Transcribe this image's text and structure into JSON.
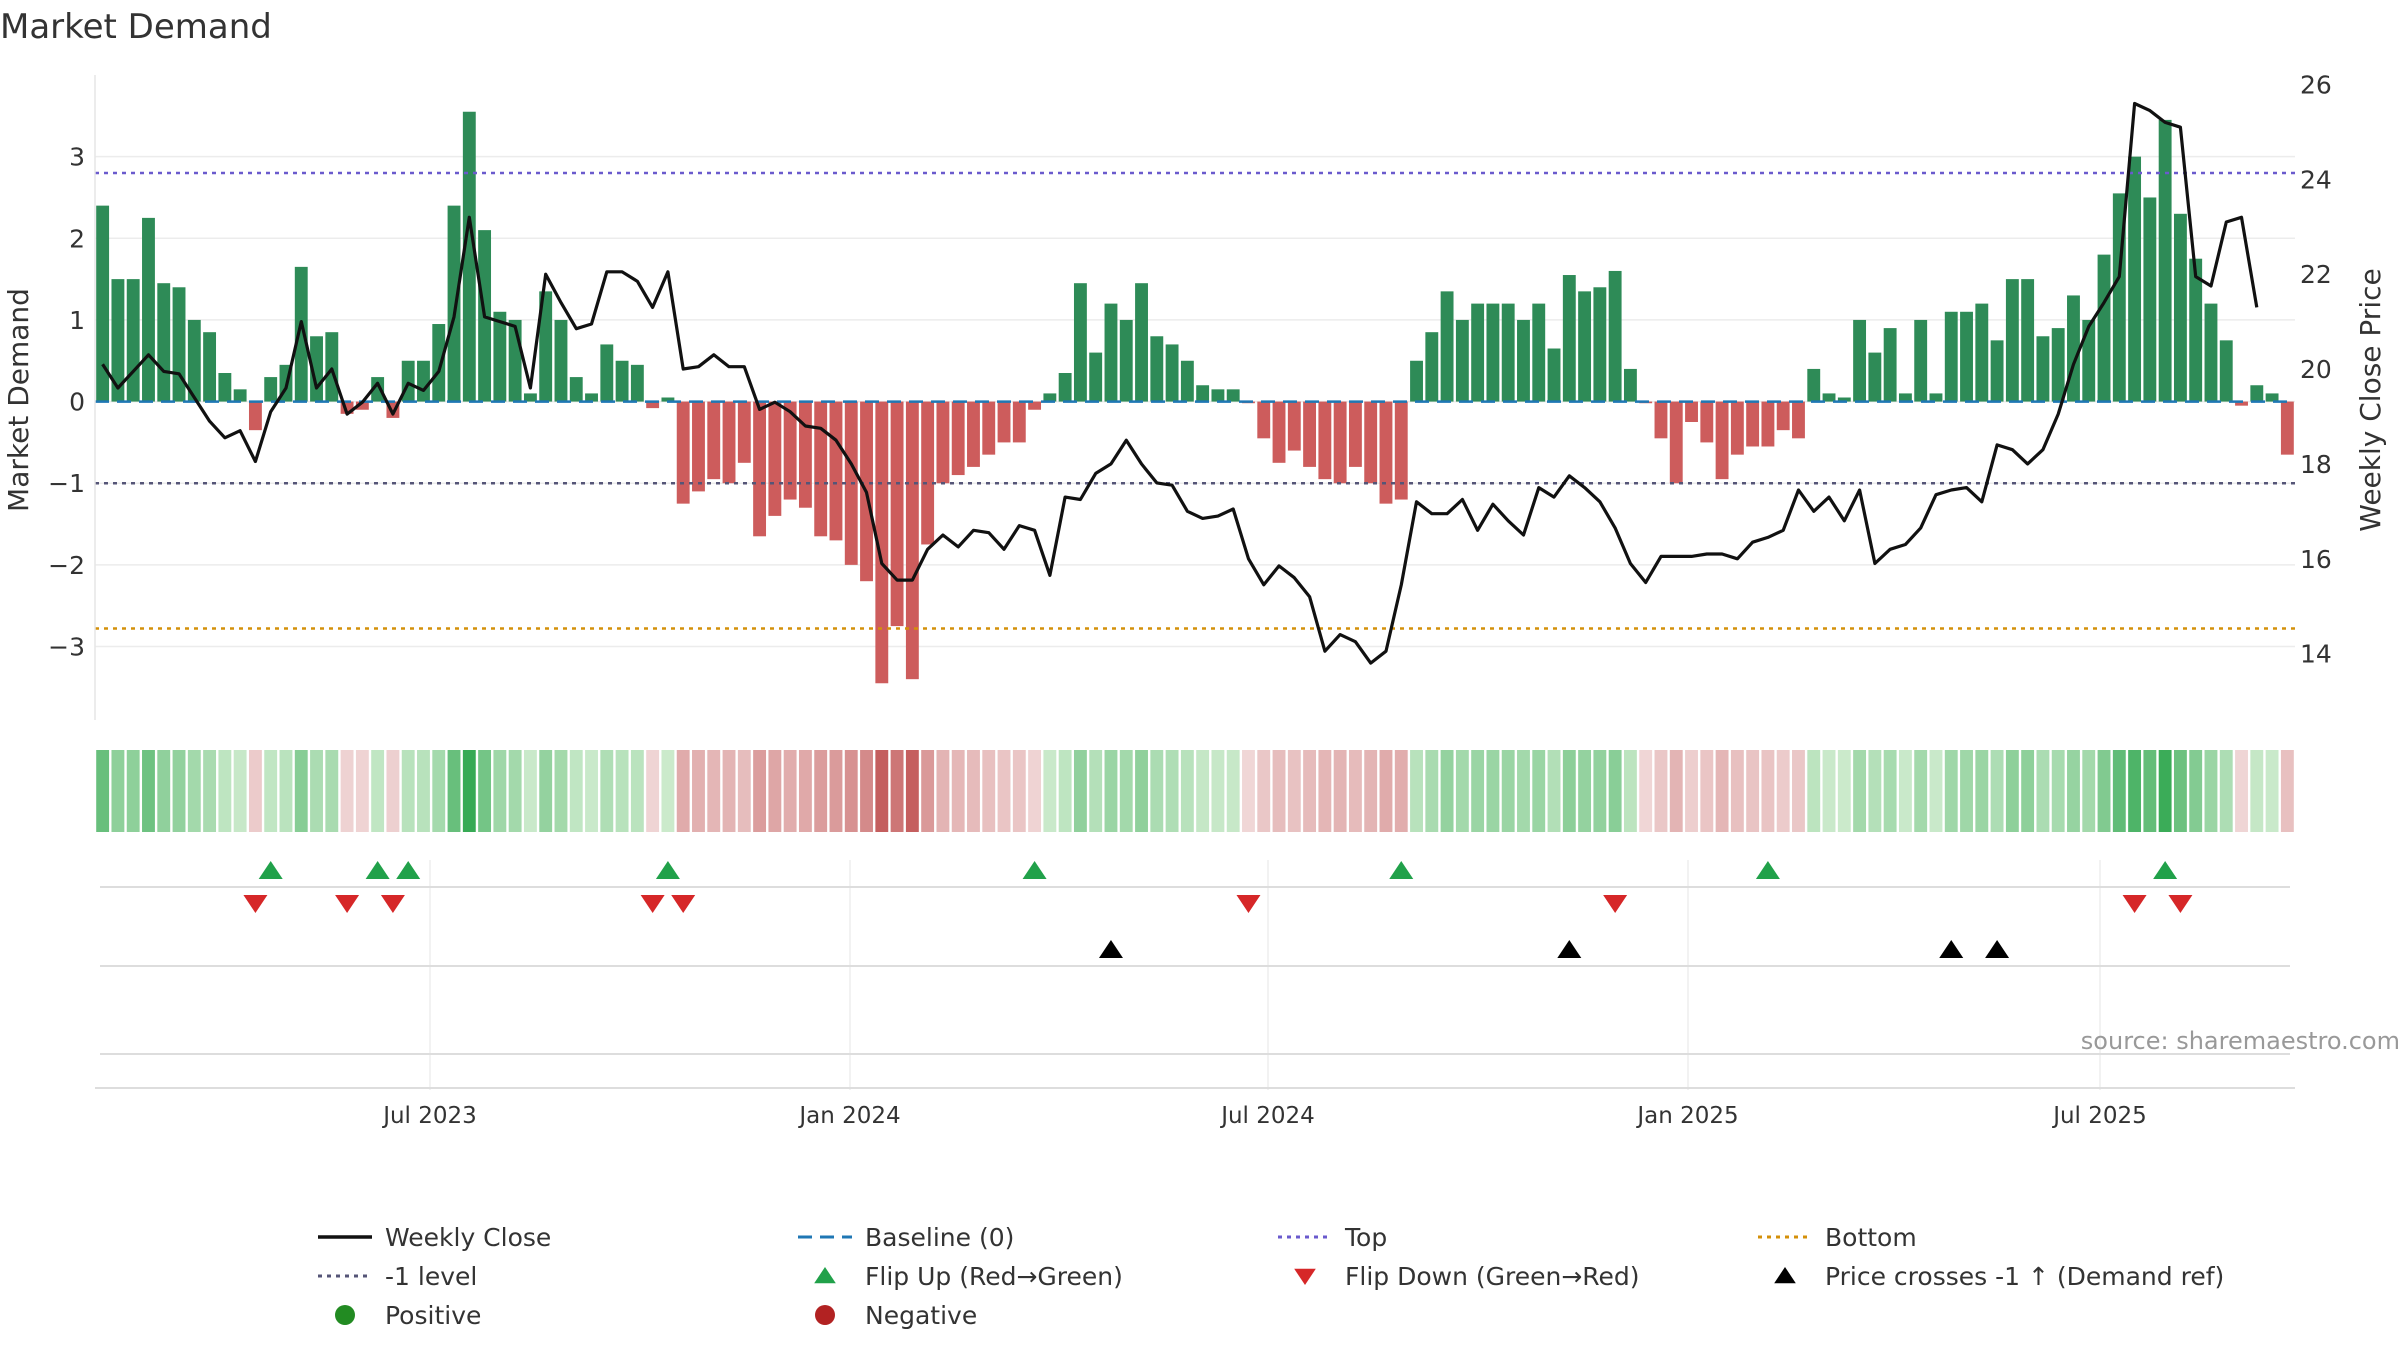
{
  "chart_data": {
    "type": "bar",
    "title": "Market Demand",
    "ylabel": "Market Demand",
    "y2label": "Weekly Close Price",
    "ylim": [
      -3.9,
      4.0
    ],
    "y2lim": [
      12.6,
      26.2
    ],
    "yticks": [
      3,
      2,
      1,
      0,
      -1,
      -2,
      -3
    ],
    "y2ticks": [
      26,
      24,
      22,
      20,
      18,
      16,
      14
    ],
    "xticks": [
      "Jul 2023",
      "Jan 2024",
      "Jul 2024",
      "Jan 2025",
      "Jul 2025"
    ],
    "source": "source: sharemaestro.com",
    "levels": {
      "top": 2.8,
      "neg_one": -1,
      "bottom": -2.78,
      "baseline": 0
    },
    "colors": {
      "positive": "#2e8b57",
      "negative": "#cd5c5c",
      "close": "#111111",
      "baseline": "#1f77b4",
      "top": "#6a5acd",
      "bottom": "#d4900a",
      "neg_one": "#555577",
      "flip_up": "#21a14a",
      "flip_down": "#d62728",
      "cross": "#000000",
      "legend_positive": "#228b22",
      "legend_negative": "#b22222"
    },
    "demand": [
      2.4,
      1.5,
      1.5,
      2.25,
      1.45,
      1.4,
      1.0,
      0.85,
      0.35,
      0.15,
      -0.35,
      0.3,
      0.45,
      1.65,
      0.8,
      0.85,
      -0.15,
      -0.1,
      0.3,
      -0.2,
      0.5,
      0.5,
      0.95,
      2.4,
      3.55,
      2.1,
      1.1,
      1.0,
      0.1,
      1.35,
      1.0,
      0.3,
      0.1,
      0.7,
      0.5,
      0.45,
      -0.08,
      0.05,
      -1.25,
      -1.1,
      -0.95,
      -1.0,
      -0.75,
      -1.65,
      -1.4,
      -1.2,
      -1.3,
      -1.65,
      -1.7,
      -2.0,
      -2.2,
      -3.45,
      -2.75,
      -3.4,
      -1.75,
      -1.0,
      -0.9,
      -0.8,
      -0.65,
      -0.5,
      -0.5,
      -0.1,
      0.1,
      0.35,
      1.45,
      0.6,
      1.2,
      1.0,
      1.45,
      0.8,
      0.7,
      0.5,
      0.2,
      0.15,
      0.15,
      -0.02,
      -0.45,
      -0.75,
      -0.6,
      -0.8,
      -0.95,
      -1.0,
      -0.8,
      -1.0,
      -1.25,
      -1.2,
      0.5,
      0.85,
      1.35,
      1.0,
      1.2,
      1.2,
      1.2,
      1.0,
      1.2,
      0.65,
      1.55,
      1.35,
      1.4,
      1.6,
      0.4,
      -0.02,
      -0.45,
      -1.0,
      -0.25,
      -0.5,
      -0.95,
      -0.65,
      -0.55,
      -0.55,
      -0.35,
      -0.45,
      0.4,
      0.1,
      0.05,
      1.0,
      0.6,
      0.9,
      0.1,
      1.0,
      0.1,
      1.1,
      1.1,
      1.2,
      0.75,
      1.5,
      1.5,
      0.8,
      0.9,
      1.3,
      1.0,
      1.8,
      2.55,
      3.0,
      2.5,
      3.45,
      2.3,
      1.75,
      1.2,
      0.75,
      -0.05,
      0.2,
      0.1,
      -0.65
    ],
    "close": [
      20.1,
      19.6,
      19.95,
      20.3,
      19.95,
      19.9,
      19.4,
      18.9,
      18.55,
      18.7,
      18.05,
      19.1,
      19.6,
      21.0,
      19.6,
      20.0,
      19.05,
      19.3,
      19.7,
      19.05,
      19.7,
      19.55,
      19.95,
      21.1,
      23.2,
      21.1,
      21.0,
      20.9,
      19.6,
      22.0,
      21.4,
      20.85,
      20.95,
      22.05,
      22.05,
      21.85,
      21.3,
      22.05,
      20.0,
      20.05,
      20.3,
      20.05,
      20.05,
      19.15,
      19.3,
      19.1,
      18.8,
      18.75,
      18.5,
      18.0,
      17.4,
      15.9,
      15.55,
      15.55,
      16.2,
      16.5,
      16.25,
      16.6,
      16.55,
      16.2,
      16.7,
      16.6,
      15.65,
      17.3,
      17.25,
      17.8,
      18.0,
      18.5,
      18.0,
      17.6,
      17.55,
      17.0,
      16.85,
      16.9,
      17.05,
      16.0,
      15.45,
      15.85,
      15.6,
      15.2,
      14.05,
      14.4,
      14.25,
      13.8,
      14.05,
      15.45,
      17.2,
      16.95,
      16.95,
      17.25,
      16.6,
      17.15,
      16.8,
      16.5,
      17.5,
      17.3,
      17.75,
      17.5,
      17.2,
      16.65,
      15.9,
      15.5,
      16.05,
      16.05,
      16.05,
      16.1,
      16.1,
      16.0,
      16.35,
      16.45,
      16.6,
      17.45,
      17.0,
      17.3,
      16.8,
      17.45,
      15.9,
      16.2,
      16.3,
      16.65,
      17.35,
      17.45,
      17.5,
      17.2,
      18.4,
      18.3,
      18.0,
      18.3,
      19.05,
      20.1,
      20.9,
      21.4,
      21.95,
      25.6,
      25.45,
      25.2,
      25.1,
      21.95,
      21.75,
      23.1,
      23.2,
      21.3
    ],
    "flip_up": [
      11,
      18,
      20,
      37,
      61,
      85,
      109,
      135
    ],
    "flip_down": [
      10,
      16,
      19,
      36,
      38,
      75,
      99,
      133,
      136
    ],
    "price_cross": [
      66,
      96,
      121,
      124
    ],
    "legend": [
      {
        "label": "Weekly Close",
        "kind": "line",
        "color": "#111111"
      },
      {
        "label": "Baseline (0)",
        "kind": "dash",
        "color": "#1f77b4"
      },
      {
        "label": "Top",
        "kind": "dot",
        "color": "#6a5acd"
      },
      {
        "label": "Bottom",
        "kind": "dot",
        "color": "#d4900a"
      },
      {
        "label": "-1 level",
        "kind": "dot",
        "color": "#555577"
      },
      {
        "label": "Flip Up (Red→Green)",
        "kind": "tri-up",
        "color": "#21a14a"
      },
      {
        "label": "Flip Down (Green→Red)",
        "kind": "tri-down",
        "color": "#d62728"
      },
      {
        "label": "Price crosses -1 ↑ (Demand ref)",
        "kind": "tri-up",
        "color": "#000000"
      },
      {
        "label": "Positive",
        "kind": "circle",
        "color": "#228b22"
      },
      {
        "label": "Negative",
        "kind": "circle",
        "color": "#b22222"
      }
    ]
  }
}
